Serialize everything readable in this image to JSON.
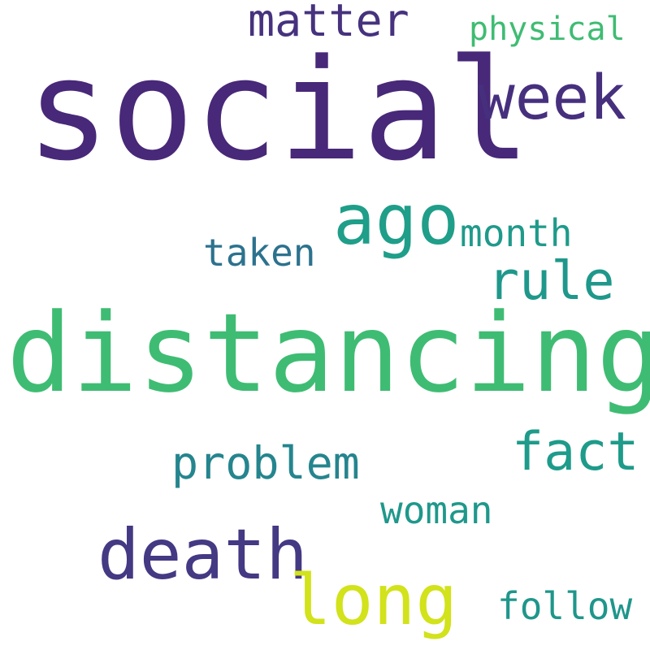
{
  "words": [
    {
      "text": "social",
      "color": "#482878"
    },
    {
      "text": "distancing",
      "color": "#3fbc73"
    },
    {
      "text": "matter",
      "color": "#46327e"
    },
    {
      "text": "physical",
      "color": "#3fbc73"
    },
    {
      "text": "week",
      "color": "#46307e"
    },
    {
      "text": "ago",
      "color": "#1f9e89"
    },
    {
      "text": "month",
      "color": "#1f9a8a"
    },
    {
      "text": "taken",
      "color": "#2c728e"
    },
    {
      "text": "rule",
      "color": "#1f988b"
    },
    {
      "text": "fact",
      "color": "#1e9b8a"
    },
    {
      "text": "problem",
      "color": "#25858e"
    },
    {
      "text": "woman",
      "color": "#1f988b"
    },
    {
      "text": "death",
      "color": "#443983"
    },
    {
      "text": "long",
      "color": "#d2e21b"
    },
    {
      "text": "follow",
      "color": "#1f968b"
    }
  ]
}
